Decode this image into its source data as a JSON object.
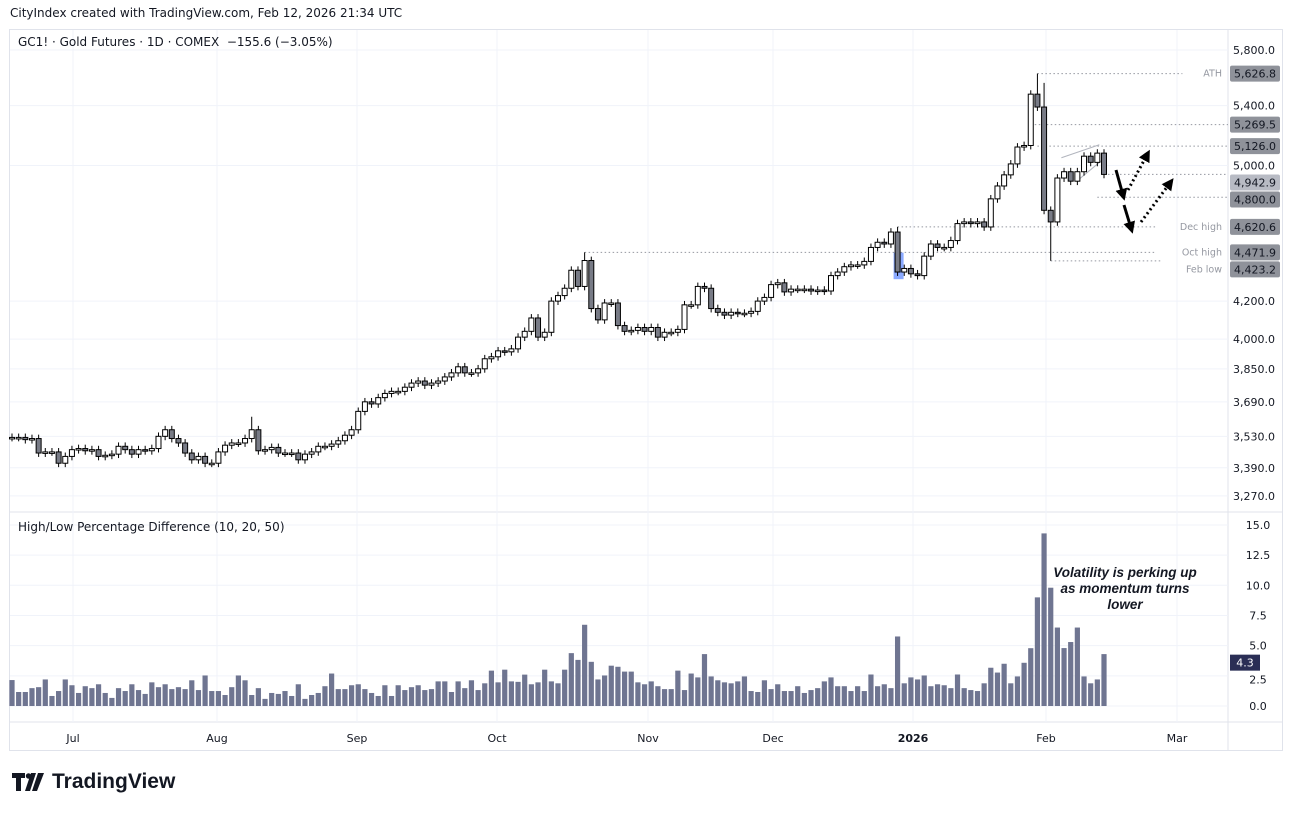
{
  "header": {
    "attribution": "CityIndex created with TradingView.com, Feb 12, 2026 21:34 UTC"
  },
  "legend": {
    "symbol": "GC1! · Gold Futures · 1D · COMEX",
    "change": "−155.6 (−3.05%)"
  },
  "indicator": {
    "title": "High/Low Percentage Difference (10, 20, 50)",
    "last_value": "4.3"
  },
  "annotation": {
    "text": "Volatility is perking up as momentum turns lower"
  },
  "logo": {
    "text": "TradingView"
  },
  "colors": {
    "up_body": "#ffffff",
    "down_body": "#787b86",
    "wick": "#000000",
    "indicator_bar": "#6f7591",
    "last_indicator_badge": "#2a2e55",
    "badge": "#8f929a",
    "last_price_badge": "#b8bbc4",
    "highlight": "#2962ff"
  },
  "chart_data": [
    {
      "type": "candlestick",
      "scale": "log",
      "ylim": [
        3200,
        5900
      ],
      "x_ticks": [
        "Jul",
        "Aug",
        "Sep",
        "Oct",
        "Nov",
        "Dec",
        "2026",
        "Feb",
        "Mar"
      ],
      "y_ticks": [
        "5,800.0",
        "5,400.0",
        "5,000.0",
        "4,200.0",
        "4,000.0",
        "3,850.0",
        "3,690.0",
        "3,530.0",
        "3,390.0",
        "3,270.0"
      ],
      "y_tick_values": [
        5800,
        5400,
        5000,
        4200,
        4000,
        3850,
        3690,
        3530,
        3390,
        3270
      ],
      "closes": [
        3525,
        3525,
        3515,
        3520,
        3455,
        3460,
        3460,
        3410,
        3440,
        3470,
        3475,
        3465,
        3470,
        3440,
        3445,
        3450,
        3485,
        3470,
        3450,
        3470,
        3465,
        3475,
        3530,
        3560,
        3520,
        3500,
        3455,
        3425,
        3440,
        3410,
        3410,
        3460,
        3490,
        3500,
        3500,
        3520,
        3560,
        3465,
        3470,
        3480,
        3455,
        3455,
        3455,
        3425,
        3450,
        3460,
        3485,
        3485,
        3495,
        3510,
        3535,
        3560,
        3645,
        3690,
        3680,
        3710,
        3730,
        3740,
        3740,
        3760,
        3780,
        3790,
        3770,
        3780,
        3790,
        3810,
        3830,
        3860,
        3830,
        3830,
        3850,
        3900,
        3910,
        3940,
        3935,
        3950,
        4010,
        4040,
        4110,
        4010,
        4035,
        4200,
        4230,
        4270,
        4370,
        4280,
        4425,
        4160,
        4100,
        4190,
        4190,
        4070,
        4040,
        4045,
        4060,
        4040,
        4060,
        4010,
        4035,
        4035,
        4050,
        4180,
        4180,
        4280,
        4270,
        4160,
        4140,
        4125,
        4140,
        4135,
        4135,
        4145,
        4200,
        4220,
        4290,
        4300,
        4250,
        4265,
        4265,
        4265,
        4255,
        4260,
        4255,
        4340,
        4360,
        4390,
        4400,
        4400,
        4420,
        4500,
        4530,
        4520,
        4590,
        4360,
        4380,
        4350,
        4340,
        4450,
        4520,
        4500,
        4500,
        4540,
        4640,
        4650,
        4640,
        4650,
        4620,
        4790,
        4870,
        4940,
        5010,
        5120,
        5130,
        5480,
        5390,
        4720,
        4650,
        4920,
        4960,
        4900,
        4960,
        5060,
        5020,
        5080,
        4942.9
      ],
      "high_overrides": {
        "36": 3620,
        "86": 4471.9,
        "133": 4620.6,
        "154": 5626.8,
        "155": 5560
      },
      "low_overrides": {
        "156": 4423.2
      },
      "levels": [
        {
          "label": "ATH",
          "value": 5626.8,
          "text": "5,626.8",
          "from_bar": 154
        },
        {
          "label": "",
          "value": 5269.5,
          "text": "5,269.5",
          "from_bar": 153
        },
        {
          "label": "",
          "value": 5126.0,
          "text": "5,126.0",
          "from_bar": 154
        },
        {
          "label": "",
          "value": 4942.9,
          "text": "4,942.9",
          "from_bar": 164,
          "last": true
        },
        {
          "label": "",
          "value": 4800.0,
          "text": "4,800.0",
          "from_bar": 163
        },
        {
          "label": "Dec high",
          "value": 4620.6,
          "text": "4,620.6",
          "from_bar": 133
        },
        {
          "label": "Oct high",
          "value": 4471.9,
          "text": "4,471.9",
          "from_bar": 86
        },
        {
          "label": "Feb low",
          "value": 4423.2,
          "text": "4,423.2",
          "from_bar": 156
        }
      ]
    },
    {
      "type": "bar",
      "title": "High/Low Percentage Difference (10, 20, 50)",
      "ylim": [
        -1.5,
        15.8
      ],
      "y_ticks": [
        "15.0",
        "12.5",
        "10.0",
        "7.5",
        "5.0",
        "2.5",
        "0.0"
      ],
      "y_tick_values": [
        15,
        12.5,
        10,
        7.5,
        5,
        2.5,
        0
      ],
      "values": [
        2.15,
        1.16,
        1.16,
        1.48,
        1.56,
        2.2,
        0.83,
        1.24,
        2.2,
        1.72,
        1.08,
        1.64,
        1.48,
        1.8,
        1.08,
        0.67,
        1.48,
        1.24,
        1.8,
        1.32,
        1.0,
        1.96,
        1.56,
        1.8,
        1.4,
        1.56,
        1.4,
        2.13,
        1.32,
        2.53,
        1.24,
        1.24,
        0.91,
        1.56,
        2.53,
        2.13,
        0.91,
        1.48,
        0.59,
        1.08,
        1.0,
        1.24,
        0.83,
        1.8,
        0.59,
        0.91,
        1.08,
        1.64,
        2.69,
        1.4,
        1.4,
        1.72,
        1.8,
        1.4,
        1.08,
        0.83,
        1.72,
        0.83,
        1.72,
        1.32,
        1.56,
        1.72,
        1.32,
        1.4,
        2.04,
        2.04,
        1.16,
        2.04,
        1.48,
        2.13,
        1.32,
        1.88,
        2.93,
        1.96,
        3.01,
        2.04,
        2.0,
        2.6,
        1.8,
        1.96,
        3.01,
        2.04,
        1.88,
        3.01,
        4.38,
        3.82,
        6.73,
        3.66,
        2.2,
        2.53,
        3.34,
        3.25,
        2.85,
        2.85,
        1.96,
        1.8,
        2.04,
        1.64,
        1.4,
        1.4,
        2.93,
        1.32,
        2.69,
        2.37,
        4.3,
        2.45,
        2.13,
        1.96,
        1.88,
        2.04,
        2.45,
        1.24,
        1.16,
        2.13,
        1.4,
        1.8,
        1.24,
        1.24,
        1.64,
        1.08,
        1.32,
        1.48,
        2.04,
        2.37,
        1.64,
        1.64,
        1.24,
        1.64,
        1.24,
        2.61,
        1.64,
        1.8,
        1.48,
        5.76,
        1.88,
        2.37,
        2.2,
        2.53,
        1.64,
        1.8,
        1.72,
        1.48,
        2.61,
        1.48,
        1.32,
        1.24,
        1.88,
        3.17,
        2.77,
        3.5,
        1.88,
        2.45,
        3.58,
        4.79,
        9.0,
        14.3,
        9.8,
        6.5,
        4.8,
        5.3,
        6.5,
        2.45,
        1.88,
        2.2,
        4.3
      ]
    }
  ]
}
